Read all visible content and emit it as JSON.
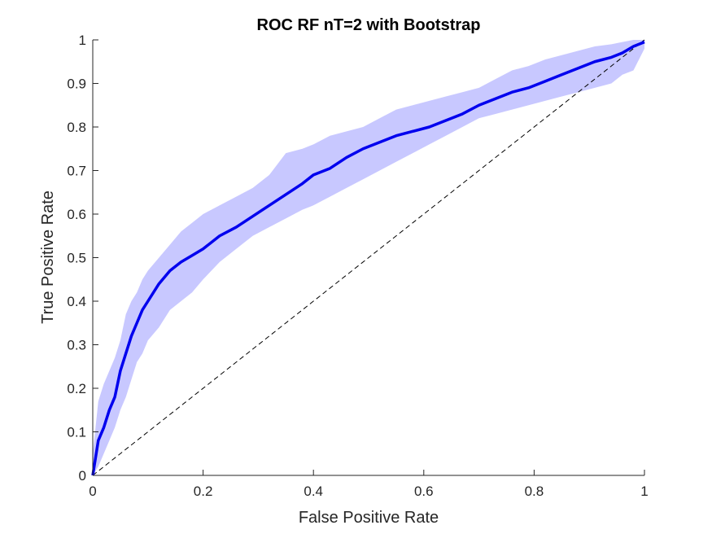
{
  "chart_data": {
    "type": "line",
    "title": "ROC RF nT=2 with Bootstrap",
    "xlabel": "False Positive Rate",
    "ylabel": "True Positive Rate",
    "xlim": [
      0,
      1
    ],
    "ylim": [
      0,
      1
    ],
    "xticks": [
      "0",
      "0.2",
      "0.4",
      "0.6",
      "0.8",
      "1"
    ],
    "yticks": [
      "0",
      "0.1",
      "0.2",
      "0.3",
      "0.4",
      "0.5",
      "0.6",
      "0.7",
      "0.8",
      "0.9",
      "1"
    ],
    "grid": false,
    "colors": {
      "line": "#0000ee",
      "band": "#c8c8ff",
      "diagonal": "#000000",
      "axis": "#262626"
    },
    "series": [
      {
        "type": "line",
        "x": [
          0,
          0.005,
          0.01,
          0.02,
          0.03,
          0.04,
          0.05,
          0.06,
          0.07,
          0.08,
          0.09,
          0.1,
          0.12,
          0.14,
          0.16,
          0.18,
          0.2,
          0.23,
          0.26,
          0.29,
          0.32,
          0.35,
          0.38,
          0.4,
          0.43,
          0.46,
          0.49,
          0.52,
          0.55,
          0.58,
          0.61,
          0.64,
          0.67,
          0.7,
          0.73,
          0.76,
          0.79,
          0.82,
          0.85,
          0.88,
          0.91,
          0.94,
          0.96,
          0.98,
          1.0
        ],
        "y": [
          0,
          0.04,
          0.08,
          0.11,
          0.15,
          0.18,
          0.24,
          0.28,
          0.32,
          0.35,
          0.38,
          0.4,
          0.44,
          0.47,
          0.49,
          0.505,
          0.52,
          0.55,
          0.57,
          0.595,
          0.62,
          0.645,
          0.67,
          0.69,
          0.705,
          0.73,
          0.75,
          0.765,
          0.78,
          0.79,
          0.8,
          0.815,
          0.83,
          0.85,
          0.865,
          0.88,
          0.89,
          0.905,
          0.92,
          0.935,
          0.95,
          0.96,
          0.97,
          0.985,
          0.995
        ]
      },
      {
        "type": "band",
        "x": [
          0,
          0.01,
          0.02,
          0.03,
          0.04,
          0.05,
          0.06,
          0.07,
          0.08,
          0.09,
          0.1,
          0.12,
          0.14,
          0.16,
          0.18,
          0.2,
          0.23,
          0.26,
          0.29,
          0.32,
          0.35,
          0.38,
          0.4,
          0.43,
          0.46,
          0.49,
          0.52,
          0.55,
          0.58,
          0.61,
          0.64,
          0.67,
          0.7,
          0.73,
          0.76,
          0.79,
          0.82,
          0.85,
          0.88,
          0.91,
          0.94,
          0.96,
          0.98,
          1.0
        ],
        "upper": [
          0.05,
          0.17,
          0.21,
          0.24,
          0.27,
          0.31,
          0.37,
          0.4,
          0.42,
          0.45,
          0.47,
          0.5,
          0.53,
          0.56,
          0.58,
          0.6,
          0.62,
          0.64,
          0.66,
          0.69,
          0.74,
          0.75,
          0.76,
          0.78,
          0.79,
          0.8,
          0.82,
          0.84,
          0.85,
          0.86,
          0.87,
          0.88,
          0.89,
          0.91,
          0.93,
          0.94,
          0.955,
          0.965,
          0.975,
          0.985,
          0.99,
          0.995,
          1.0,
          1.0
        ],
        "lower": [
          0.0,
          0.02,
          0.05,
          0.08,
          0.11,
          0.15,
          0.18,
          0.22,
          0.26,
          0.28,
          0.31,
          0.34,
          0.38,
          0.4,
          0.42,
          0.45,
          0.49,
          0.52,
          0.55,
          0.57,
          0.59,
          0.61,
          0.62,
          0.64,
          0.66,
          0.68,
          0.7,
          0.72,
          0.74,
          0.76,
          0.78,
          0.8,
          0.82,
          0.83,
          0.84,
          0.85,
          0.86,
          0.87,
          0.88,
          0.89,
          0.9,
          0.92,
          0.93,
          0.98
        ]
      },
      {
        "type": "reference",
        "x": [
          0,
          1
        ],
        "y": [
          0,
          1
        ]
      }
    ]
  }
}
